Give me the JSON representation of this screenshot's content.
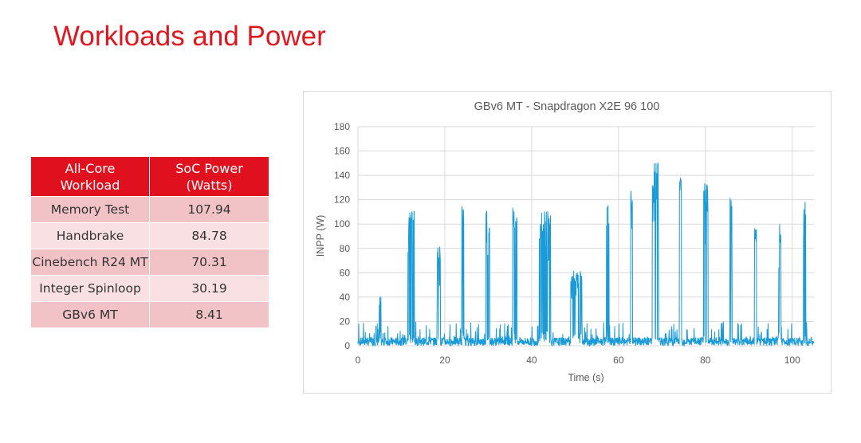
{
  "page": {
    "title": "Workloads and Power"
  },
  "table": {
    "headers": [
      "All-Core\nWorkload",
      "SoC Power\n(Watts)"
    ],
    "rows": [
      [
        "Memory Test",
        "107.94"
      ],
      [
        "Handbrake",
        "84.78"
      ],
      [
        "Cinebench R24 MT",
        "70.31"
      ],
      [
        "Integer Spinloop",
        "30.19"
      ],
      [
        "GBv6 MT",
        "8.41"
      ]
    ]
  },
  "colors": {
    "title": "#e0161f",
    "table_header": "#e0101e",
    "row_dark": "#f2c3c6",
    "row_light": "#f9e1e3",
    "series": "#1a9ad6"
  },
  "chart_data": {
    "type": "line",
    "title": "GBv6 MT - Snapdragon X2E 96 100",
    "xlabel": "Time (s)",
    "ylabel": "INPP (W)",
    "xlim": [
      0,
      105
    ],
    "ylim": [
      0,
      180
    ],
    "xticks": [
      0,
      20,
      40,
      60,
      80,
      100
    ],
    "yticks": [
      0,
      20,
      40,
      60,
      80,
      100,
      120,
      140,
      160,
      180
    ],
    "grid": true,
    "series": [
      {
        "name": "",
        "color": "#1a9ad6",
        "bursts": [
          {
            "start": 4.9,
            "end": 5.3,
            "peak": 45
          },
          {
            "start": 11.5,
            "end": 13.0,
            "peak": 114
          },
          {
            "start": 18.2,
            "end": 19.0,
            "peak": 82
          },
          {
            "start": 23.9,
            "end": 24.4,
            "peak": 116
          },
          {
            "start": 29.4,
            "end": 30.3,
            "peak": 112
          },
          {
            "start": 35.6,
            "end": 36.6,
            "peak": 114
          },
          {
            "start": 41.6,
            "end": 44.4,
            "peak": 114
          },
          {
            "start": 49.0,
            "end": 51.6,
            "peak": 62
          },
          {
            "start": 57.2,
            "end": 57.8,
            "peak": 116
          },
          {
            "start": 62.8,
            "end": 63.3,
            "peak": 130
          },
          {
            "start": 67.8,
            "end": 69.2,
            "peak": 153
          },
          {
            "start": 74.0,
            "end": 74.5,
            "peak": 142
          },
          {
            "start": 79.6,
            "end": 80.6,
            "peak": 136
          },
          {
            "start": 85.6,
            "end": 86.2,
            "peak": 126
          },
          {
            "start": 91.3,
            "end": 91.8,
            "peak": 99
          },
          {
            "start": 96.9,
            "end": 97.4,
            "peak": 100
          },
          {
            "start": 102.6,
            "end": 103.1,
            "peak": 125
          }
        ],
        "baseline": [
          0,
          15
        ]
      }
    ]
  }
}
